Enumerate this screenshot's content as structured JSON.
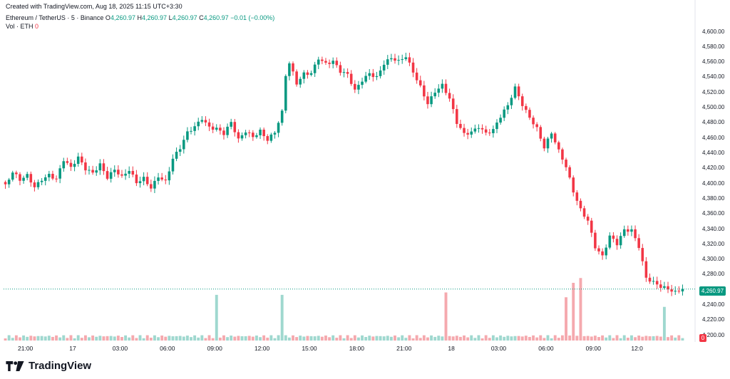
{
  "header": {
    "created_note": "Created with TradingView.com, Aug 18, 2025 11:15 UTC+3:30"
  },
  "legend": {
    "symbol": "Ethereum / TetherUS · 5 · Binance",
    "open_label": "O",
    "open": "4,260.97",
    "high_label": "H",
    "high": "4,260.97",
    "low_label": "L",
    "low": "4,260.97",
    "close_label": "C",
    "close": "4,260.97",
    "change": "−0.01 (−0.00%)",
    "vol_label": "Vol · ETH",
    "vol_value": "0"
  },
  "price_tag": "4,260.97",
  "volume_tag": "0",
  "brand": {
    "name": "TradingView"
  },
  "colors": {
    "up": "#089981",
    "down": "#f23645",
    "vol_up": "#9fd8cf",
    "vol_down": "#f5a9ae"
  },
  "chart_data": {
    "type": "candlestick",
    "symbol": "Ethereum / TetherUS",
    "interval": "5",
    "exchange": "Binance",
    "last_price": 4260.97,
    "ylim": [
      4196,
      4608
    ],
    "y_ticks": [
      "4,600.00",
      "4,580.00",
      "4,560.00",
      "4,540.00",
      "4,520.00",
      "4,500.00",
      "4,480.00",
      "4,460.00",
      "4,440.00",
      "4,420.00",
      "4,400.00",
      "4,380.00",
      "4,360.00",
      "4,340.00",
      "4,320.00",
      "4,300.00",
      "4,280.00",
      "4,240.00",
      "4,220.00",
      "4,200.00"
    ],
    "x_ticks": [
      "21:00",
      "17",
      "03:00",
      "06:00",
      "09:00",
      "12:00",
      "15:00",
      "18:00",
      "21:00",
      "18",
      "03:00",
      "06:00",
      "09:00",
      "12:0"
    ],
    "price_path": [
      [
        0,
        4397
      ],
      [
        2,
        4413
      ],
      [
        4,
        4402
      ],
      [
        6,
        4409
      ],
      [
        8,
        4396
      ],
      [
        10,
        4408
      ],
      [
        12,
        4414
      ],
      [
        14,
        4407
      ],
      [
        16,
        4430
      ],
      [
        18,
        4418
      ],
      [
        20,
        4432
      ],
      [
        22,
        4419
      ],
      [
        24,
        4416
      ],
      [
        26,
        4428
      ],
      [
        28,
        4410
      ],
      [
        30,
        4418
      ],
      [
        32,
        4406
      ],
      [
        34,
        4415
      ],
      [
        36,
        4400
      ],
      [
        38,
        4408
      ],
      [
        40,
        4397
      ],
      [
        42,
        4412
      ],
      [
        44,
        4403
      ],
      [
        46,
        4431
      ],
      [
        48,
        4444
      ],
      [
        50,
        4465
      ],
      [
        52,
        4475
      ],
      [
        54,
        4488
      ],
      [
        56,
        4477
      ],
      [
        58,
        4474
      ],
      [
        60,
        4465
      ],
      [
        62,
        4478
      ],
      [
        64,
        4455
      ],
      [
        66,
        4468
      ],
      [
        68,
        4463
      ],
      [
        70,
        4472
      ],
      [
        72,
        4460
      ],
      [
        74,
        4468
      ],
      [
        76,
        4492
      ],
      [
        77,
        4540
      ],
      [
        78,
        4556
      ],
      [
        80,
        4530
      ],
      [
        82,
        4545
      ],
      [
        84,
        4548
      ],
      [
        86,
        4568
      ],
      [
        88,
        4559
      ],
      [
        90,
        4560
      ],
      [
        92,
        4545
      ],
      [
        94,
        4541
      ],
      [
        96,
        4522
      ],
      [
        98,
        4538
      ],
      [
        100,
        4548
      ],
      [
        102,
        4542
      ],
      [
        104,
        4558
      ],
      [
        106,
        4563
      ],
      [
        108,
        4558
      ],
      [
        110,
        4566
      ],
      [
        112,
        4548
      ],
      [
        114,
        4530
      ],
      [
        116,
        4508
      ],
      [
        118,
        4522
      ],
      [
        120,
        4528
      ],
      [
        122,
        4509
      ],
      [
        124,
        4478
      ],
      [
        126,
        4465
      ],
      [
        128,
        4470
      ],
      [
        130,
        4478
      ],
      [
        132,
        4468
      ],
      [
        134,
        4470
      ],
      [
        136,
        4486
      ],
      [
        138,
        4500
      ],
      [
        140,
        4525
      ],
      [
        142,
        4505
      ],
      [
        144,
        4490
      ],
      [
        146,
        4475
      ],
      [
        148,
        4448
      ],
      [
        150,
        4465
      ],
      [
        152,
        4440
      ],
      [
        154,
        4420
      ],
      [
        156,
        4390
      ],
      [
        158,
        4368
      ],
      [
        160,
        4354
      ],
      [
        162,
        4318
      ],
      [
        164,
        4303
      ],
      [
        166,
        4328
      ],
      [
        168,
        4318
      ],
      [
        170,
        4338
      ],
      [
        172,
        4340
      ],
      [
        174,
        4320
      ],
      [
        176,
        4278
      ],
      [
        178,
        4270
      ],
      [
        180,
        4262
      ],
      [
        182,
        4258
      ],
      [
        184,
        4255
      ],
      [
        186,
        4261
      ]
    ],
    "volume_spikes": [
      [
        58,
        0.95
      ],
      [
        76,
        0.95
      ],
      [
        121,
        1.0
      ],
      [
        154,
        0.9
      ],
      [
        156,
        1.2
      ],
      [
        158,
        1.3
      ],
      [
        181,
        0.7
      ]
    ]
  }
}
